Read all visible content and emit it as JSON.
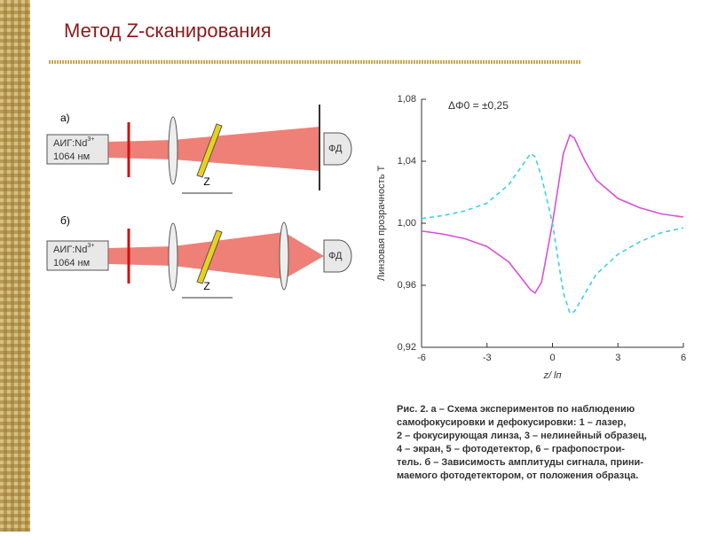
{
  "slide_title": "Метод Z-сканирования",
  "diagram": {
    "panel_a": "а)",
    "panel_b": "б)",
    "laser_name": "АИГ:Nd",
    "laser_ion": "3+",
    "laser_wavelength": "1064 нм",
    "detector": "ФД",
    "shift": "Z"
  },
  "caption": [
    "Рис. 2. а – Схема экспериментов по наблюдению",
    "самофокусировки и дефокусировки: 1 – лазер,",
    "2 – фокусирующая линза, 3 – нелинейный образец,",
    "4 – экран, 5 – фотодетектор, 6 – графопострои-",
    "тель. б – Зависимость амплитуды сигнала, прини-",
    "маемого фотодетектором, от положения образца."
  ],
  "chart_data": {
    "type": "line",
    "annotation": "ΔΦ0 = ±0,25",
    "xlabel": "z/ lп",
    "ylabel": "Линзовая прозрачность T",
    "x": [
      -6,
      -5,
      -4,
      -3,
      -2,
      -1.5,
      -1,
      -0.8,
      -0.5,
      0,
      0.5,
      0.8,
      1,
      1.5,
      2,
      3,
      4,
      5,
      6
    ],
    "series": [
      {
        "color": "#d94fd9",
        "dashed": false,
        "values": [
          0.995,
          0.993,
          0.99,
          0.985,
          0.975,
          0.966,
          0.957,
          0.955,
          0.962,
          1.0,
          1.045,
          1.057,
          1.055,
          1.04,
          1.028,
          1.016,
          1.01,
          1.006,
          1.004
        ]
      },
      {
        "color": "#3fd0e0",
        "dashed": true,
        "values": [
          1.003,
          1.005,
          1.008,
          1.013,
          1.025,
          1.035,
          1.045,
          1.043,
          1.03,
          1.0,
          0.955,
          0.942,
          0.943,
          0.955,
          0.967,
          0.98,
          0.988,
          0.994,
          0.997
        ]
      }
    ],
    "xlim": [
      -6,
      6
    ],
    "xticks": [
      -6,
      -3,
      0,
      3,
      6
    ],
    "ylim": [
      0.92,
      1.08
    ],
    "yticks": [
      {
        "value": 0.92,
        "label": "0,92"
      },
      {
        "value": 0.96,
        "label": "0,96"
      },
      {
        "value": 1.0,
        "label": "1,00"
      },
      {
        "value": 1.04,
        "label": "1,04"
      },
      {
        "value": 1.08,
        "label": "1,08"
      }
    ]
  }
}
